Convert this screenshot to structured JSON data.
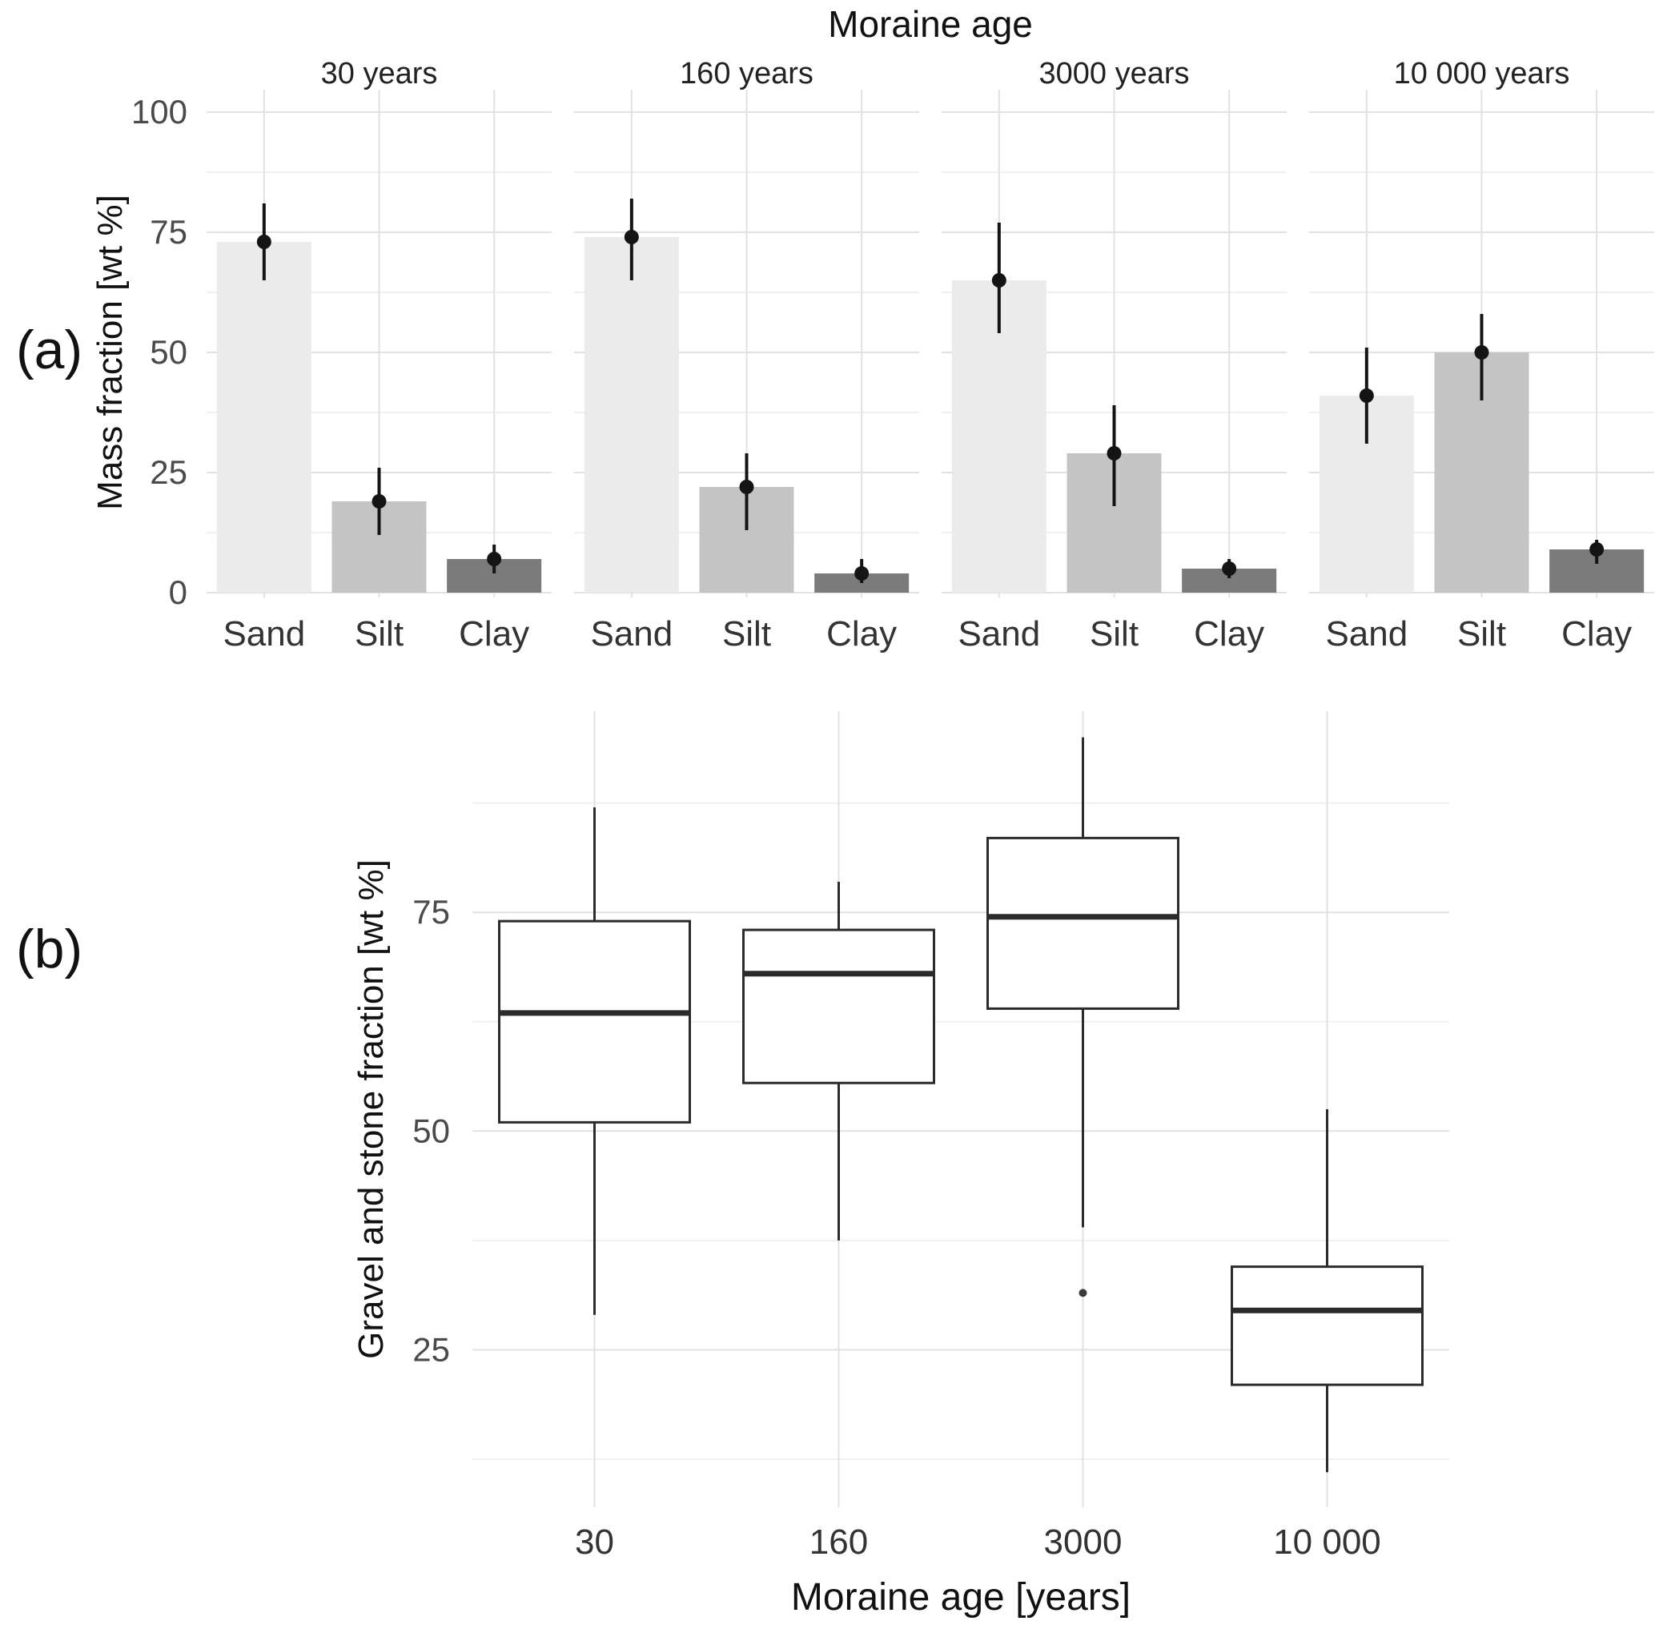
{
  "figure": {
    "background": "#ffffff",
    "gridline_major_color": "#e1e1e1",
    "gridline_minor_color": "#f0f0f0"
  },
  "chart_data": [
    {
      "type": "bar",
      "panel_label": "(a)",
      "title": "Moraine age",
      "xlabel": "",
      "ylabel": "Mass fraction [wt %]",
      "ylim": [
        0,
        100
      ],
      "yticks": [
        0,
        25,
        50,
        75,
        100
      ],
      "grid": "on",
      "categories": [
        "Sand",
        "Silt",
        "Clay"
      ],
      "bar_colors": {
        "Sand": "#ebebeb",
        "Silt": "#c4c4c4",
        "Clay": "#7b7b7b"
      },
      "error_bar_color": "#141414",
      "facets": [
        {
          "label": "30 years",
          "values": [
            73,
            19,
            7
          ],
          "err_low": [
            65,
            12,
            4
          ],
          "err_high": [
            81,
            26,
            10
          ]
        },
        {
          "label": "160 years",
          "values": [
            74,
            22,
            4
          ],
          "err_low": [
            65,
            13,
            2
          ],
          "err_high": [
            82,
            29,
            7
          ]
        },
        {
          "label": "3000 years",
          "values": [
            65,
            29,
            5
          ],
          "err_low": [
            54,
            18,
            3
          ],
          "err_high": [
            77,
            39,
            7
          ]
        },
        {
          "label": "10 000 years",
          "values": [
            41,
            50,
            9
          ],
          "err_low": [
            31,
            40,
            6
          ],
          "err_high": [
            51,
            58,
            11
          ]
        }
      ]
    },
    {
      "type": "boxplot",
      "panel_label": "(b)",
      "title": "",
      "xlabel": "Moraine age [years]",
      "ylabel": "Gravel and stone fraction [wt %]",
      "ylim": [
        7,
        98
      ],
      "yticks": [
        25,
        50,
        75
      ],
      "grid": "on",
      "box_stroke_color": "#2b2b2b",
      "categories": [
        "30",
        "160",
        "3000",
        "10 000"
      ],
      "boxes": [
        {
          "category": "30",
          "whisker_low": 29,
          "q1": 51,
          "median": 63.5,
          "q3": 74,
          "whisker_high": 87,
          "outliers": []
        },
        {
          "category": "160",
          "whisker_low": 37.5,
          "q1": 55.5,
          "median": 68,
          "q3": 73,
          "whisker_high": 78.5,
          "outliers": []
        },
        {
          "category": "3000",
          "whisker_low": 39,
          "q1": 64,
          "median": 74.5,
          "q3": 83.5,
          "whisker_high": 95,
          "outliers": [
            31.5
          ]
        },
        {
          "category": "10 000",
          "whisker_low": 11,
          "q1": 21,
          "median": 29.5,
          "q3": 34.5,
          "whisker_high": 52.5,
          "outliers": []
        }
      ]
    }
  ]
}
